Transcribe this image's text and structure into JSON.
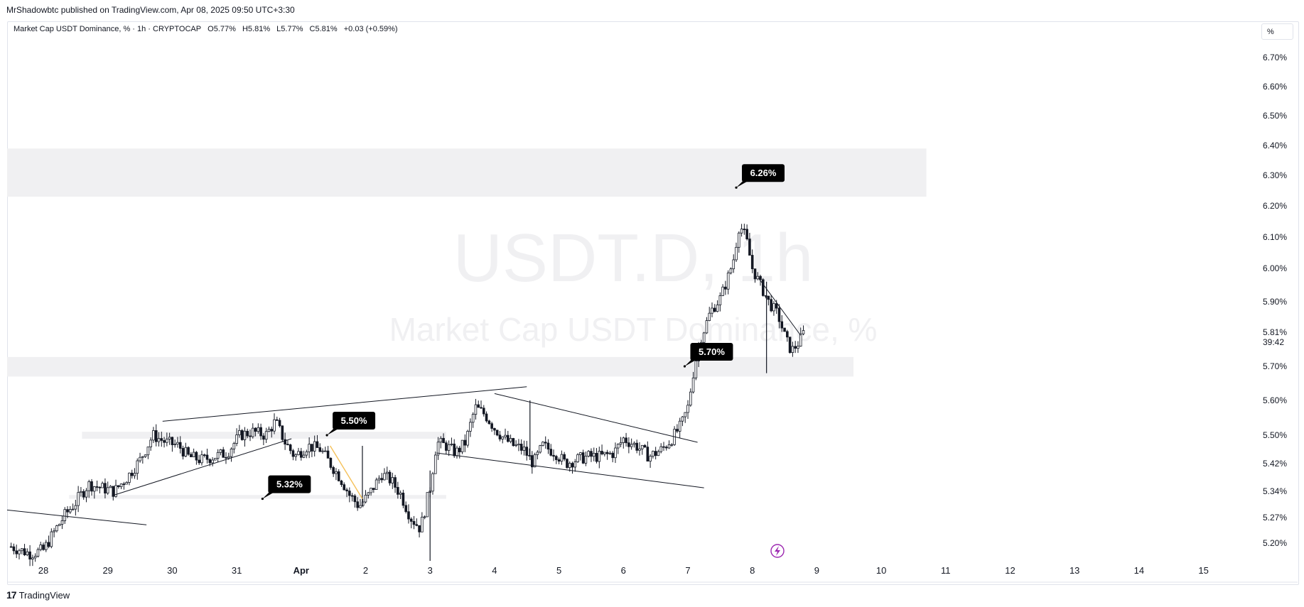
{
  "header": {
    "published_by": "MrShadowbtc published on TradingView.com, Apr 08, 2025 09:50 UTC+3:30"
  },
  "legend": {
    "title": "Market Cap USDT Dominance, % · 1h · CRYPTOCAP",
    "open": "O5.77%",
    "high": "H5.81%",
    "low": "L5.77%",
    "close": "C5.81%",
    "change": "+0.03 (+0.59%)"
  },
  "unit_button": {
    "label": "%"
  },
  "watermark": {
    "symbol": "USDT.D, 1h",
    "name": "Market Cap USDT Dominance, %"
  },
  "footer": {
    "brand": "TradingView"
  },
  "colors": {
    "candle": "#131722",
    "zone": "#f0f0f2",
    "callout_bg": "#000000",
    "countdown_bg": "#ffffff",
    "watermark": "#f0f0f2",
    "yellow_line": "#f5c15a",
    "purple_icon": "#9c27b0"
  },
  "chart_data": {
    "type": "candlestick",
    "symbol": "USDT.D",
    "interval": "1h",
    "y_axis": {
      "ticks": [
        {
          "value": 6.7,
          "label": "6.70%"
        },
        {
          "value": 6.6,
          "label": "6.60%"
        },
        {
          "value": 6.5,
          "label": "6.50%"
        },
        {
          "value": 6.4,
          "label": "6.40%"
        },
        {
          "value": 6.3,
          "label": "6.30%"
        },
        {
          "value": 6.2,
          "label": "6.20%"
        },
        {
          "value": 6.1,
          "label": "6.10%"
        },
        {
          "value": 6.0,
          "label": "6.00%"
        },
        {
          "value": 5.9,
          "label": "5.90%"
        },
        {
          "value": 5.7,
          "label": "5.70%"
        },
        {
          "value": 5.6,
          "label": "5.60%"
        },
        {
          "value": 5.5,
          "label": "5.50%"
        },
        {
          "value": 5.42,
          "label": "5.42%"
        },
        {
          "value": 5.34,
          "label": "5.34%"
        },
        {
          "value": 5.27,
          "label": "5.27%"
        },
        {
          "value": 5.2,
          "label": "5.20%"
        }
      ],
      "current_price": {
        "value": 5.81,
        "label": "5.81%",
        "countdown": "39:42"
      }
    },
    "x_axis": {
      "ticks": [
        {
          "day": 28,
          "label": "28"
        },
        {
          "day": 29,
          "label": "29"
        },
        {
          "day": 30,
          "label": "30"
        },
        {
          "day": 31,
          "label": "31"
        },
        {
          "day": 32,
          "label": "Apr"
        },
        {
          "day": 33,
          "label": "2"
        },
        {
          "day": 34,
          "label": "3"
        },
        {
          "day": 35,
          "label": "4"
        },
        {
          "day": 36,
          "label": "5"
        },
        {
          "day": 37,
          "label": "6"
        },
        {
          "day": 38,
          "label": "7"
        },
        {
          "day": 39,
          "label": "8"
        },
        {
          "day": 40,
          "label": "9"
        },
        {
          "day": 41,
          "label": "10"
        },
        {
          "day": 42,
          "label": "11"
        },
        {
          "day": 43,
          "label": "12"
        },
        {
          "day": 44,
          "label": "13"
        },
        {
          "day": 45,
          "label": "14"
        },
        {
          "day": 46,
          "label": "15"
        }
      ]
    },
    "price_path": [
      [
        27.5,
        5.19
      ],
      [
        27.65,
        5.18
      ],
      [
        27.8,
        5.17
      ],
      [
        28.0,
        5.18
      ],
      [
        28.2,
        5.24
      ],
      [
        28.35,
        5.28
      ],
      [
        28.5,
        5.31
      ],
      [
        28.7,
        5.36
      ],
      [
        28.9,
        5.35
      ],
      [
        29.1,
        5.34
      ],
      [
        29.3,
        5.38
      ],
      [
        29.5,
        5.43
      ],
      [
        29.7,
        5.5
      ],
      [
        29.9,
        5.48
      ],
      [
        30.1,
        5.47
      ],
      [
        30.25,
        5.44
      ],
      [
        30.45,
        5.43
      ],
      [
        30.65,
        5.44
      ],
      [
        30.85,
        5.45
      ],
      [
        31.05,
        5.5
      ],
      [
        31.25,
        5.51
      ],
      [
        31.45,
        5.5
      ],
      [
        31.6,
        5.54
      ],
      [
        31.75,
        5.48
      ],
      [
        31.9,
        5.44
      ],
      [
        32.1,
        5.47
      ],
      [
        32.3,
        5.46
      ],
      [
        32.45,
        5.42
      ],
      [
        32.6,
        5.38
      ],
      [
        32.75,
        5.33
      ],
      [
        32.9,
        5.3
      ],
      [
        33.05,
        5.33
      ],
      [
        33.25,
        5.39
      ],
      [
        33.4,
        5.37
      ],
      [
        33.55,
        5.33
      ],
      [
        33.7,
        5.27
      ],
      [
        33.85,
        5.24
      ],
      [
        34.0,
        5.35
      ],
      [
        34.1,
        5.48
      ],
      [
        34.25,
        5.47
      ],
      [
        34.4,
        5.45
      ],
      [
        34.55,
        5.48
      ],
      [
        34.7,
        5.58
      ],
      [
        34.85,
        5.56
      ],
      [
        35.0,
        5.52
      ],
      [
        35.15,
        5.49
      ],
      [
        35.3,
        5.47
      ],
      [
        35.45,
        5.46
      ],
      [
        35.6,
        5.42
      ],
      [
        35.75,
        5.47
      ],
      [
        35.95,
        5.45
      ],
      [
        36.1,
        5.42
      ],
      [
        36.25,
        5.43
      ],
      [
        36.45,
        5.44
      ],
      [
        36.65,
        5.44
      ],
      [
        36.85,
        5.45
      ],
      [
        37.0,
        5.49
      ],
      [
        37.2,
        5.47
      ],
      [
        37.4,
        5.44
      ],
      [
        37.6,
        5.46
      ],
      [
        37.75,
        5.49
      ],
      [
        37.9,
        5.53
      ],
      [
        38.0,
        5.58
      ],
      [
        38.1,
        5.7
      ],
      [
        38.2,
        5.79
      ],
      [
        38.35,
        5.87
      ],
      [
        38.5,
        5.91
      ],
      [
        38.6,
        5.96
      ],
      [
        38.7,
        6.02
      ],
      [
        38.8,
        6.14
      ],
      [
        38.9,
        6.1
      ],
      [
        39.0,
        6.0
      ],
      [
        39.1,
        5.96
      ],
      [
        39.25,
        5.9
      ],
      [
        39.4,
        5.86
      ],
      [
        39.5,
        5.8
      ],
      [
        39.6,
        5.75
      ],
      [
        39.7,
        5.77
      ],
      [
        39.8,
        5.81
      ]
    ],
    "zones": [
      {
        "x_start": 27.0,
        "x_end": 41.7,
        "y_low": 6.23,
        "y_high": 6.39
      },
      {
        "x_start": 27.0,
        "x_end": 40.57,
        "y_low": 5.67,
        "y_high": 5.73
      },
      {
        "x_start": 28.6,
        "x_end": 34.25,
        "y_low": 5.49,
        "y_high": 5.51
      },
      {
        "x_start": 28.4,
        "x_end": 34.25,
        "y_low": 5.32,
        "y_high": 5.33
      }
    ],
    "trendlines": [
      {
        "from": [
          27.0,
          5.29
        ],
        "to": [
          29.6,
          5.25
        ],
        "color": "#131722"
      },
      {
        "from": [
          29.1,
          5.33
        ],
        "to": [
          31.85,
          5.49
        ],
        "color": "#131722"
      },
      {
        "from": [
          29.85,
          5.54
        ],
        "to": [
          35.5,
          5.64
        ],
        "color": "#131722"
      },
      {
        "from": [
          35.0,
          5.62
        ],
        "to": [
          38.15,
          5.48
        ],
        "color": "#131722"
      },
      {
        "from": [
          34.1,
          5.45
        ],
        "to": [
          38.25,
          5.35
        ],
        "color": "#131722"
      },
      {
        "from": [
          32.45,
          5.47
        ],
        "to": [
          32.95,
          5.32
        ],
        "color": "#f5c15a"
      },
      {
        "from": [
          39.1,
          5.97
        ],
        "to": [
          39.75,
          5.8
        ],
        "color": "#131722"
      }
    ],
    "spikes": [
      {
        "x": 34.0,
        "low": 5.15,
        "high": 5.4
      },
      {
        "x": 39.22,
        "low": 5.68,
        "high": 5.96
      },
      {
        "x": 32.95,
        "low": 5.3,
        "high": 5.47
      },
      {
        "x": 35.55,
        "low": 5.43,
        "high": 5.6
      }
    ],
    "annotations": [
      {
        "label": "6.26%",
        "value": 6.26,
        "x": 38.75
      },
      {
        "label": "5.70%",
        "value": 5.7,
        "x": 37.95
      },
      {
        "label": "5.50%",
        "value": 5.5,
        "x": 32.4
      },
      {
        "label": "5.32%",
        "value": 5.32,
        "x": 31.4
      }
    ]
  }
}
